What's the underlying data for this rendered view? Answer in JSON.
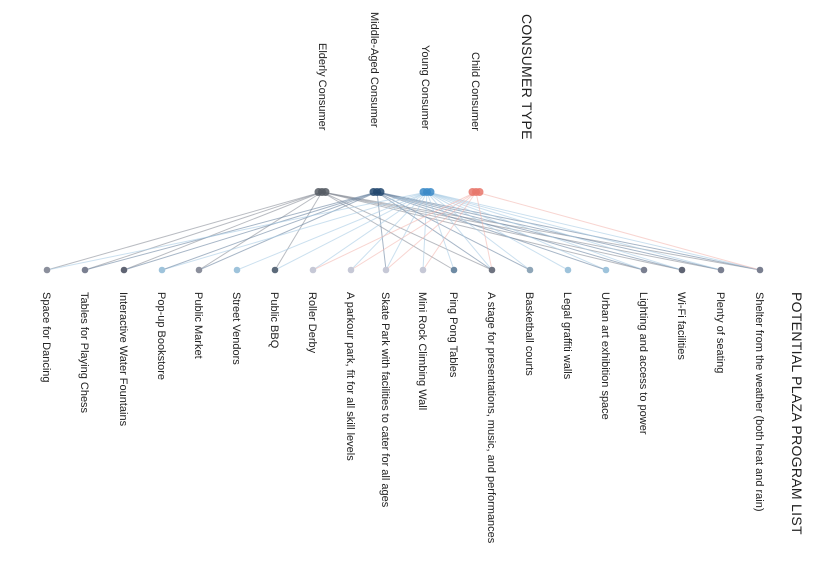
{
  "consumer_type_title": "CONSUMER TYPE",
  "program_list_title": "POTENTIAL PLAZA PROGRAM LIST",
  "consumers": [
    {
      "id": "child",
      "label": "Child Consumer",
      "color": "#e8766a"
    },
    {
      "id": "young",
      "label": "Young Consumer",
      "color": "#3a8ac8"
    },
    {
      "id": "middle",
      "label": "Middle-Aged Consumer",
      "color": "#22486e"
    },
    {
      "id": "elderly",
      "label": "Elderly Consumer",
      "color": "#555a63"
    }
  ],
  "programs": [
    {
      "label": "Shelter from the weather (both heat and rain)",
      "color": "#7a7f90",
      "consumers": [
        "elderly",
        "middle",
        "young",
        "child"
      ]
    },
    {
      "label": "Plenty of seating",
      "color": "#7a7f90",
      "consumers": [
        "elderly",
        "middle",
        "young"
      ]
    },
    {
      "label": "Wi-Fi facilities",
      "color": "#5f6473",
      "consumers": [
        "elderly",
        "middle",
        "young"
      ]
    },
    {
      "label": "Lighting and access to power",
      "color": "#7a7f90",
      "consumers": [
        "elderly",
        "middle",
        "young"
      ]
    },
    {
      "label": "Urban art exhibition space",
      "color": "#9ec3db",
      "consumers": [
        "young",
        "middle"
      ]
    },
    {
      "label": "Legal graffiti walls",
      "color": "#9ec3db",
      "consumers": [
        "young"
      ]
    },
    {
      "label": "Basketball courts",
      "color": "#8fa6b8",
      "consumers": [
        "young",
        "middle"
      ]
    },
    {
      "label": "A stage for presentations, music, and performances",
      "color": "#6e7380",
      "consumers": [
        "elderly",
        "middle",
        "young",
        "child"
      ]
    },
    {
      "label": "Ping Pong Tables",
      "color": "#6e8aa3",
      "consumers": [
        "elderly",
        "young"
      ]
    },
    {
      "label": "Mini Rock Climbing Wall",
      "color": "#c6c8d6",
      "consumers": [
        "child",
        "young"
      ]
    },
    {
      "label": "Skate Park with facilities to cater for all ages",
      "color": "#c6c8d6",
      "consumers": [
        "child",
        "young",
        "middle"
      ]
    },
    {
      "label": "A parkour park, fit for all skill levels",
      "color": "#c6c8d6",
      "consumers": [
        "child",
        "young"
      ]
    },
    {
      "label": "Roller Derby",
      "color": "#c6c8d6",
      "consumers": [
        "young",
        "child"
      ]
    },
    {
      "label": "Public BBQ",
      "color": "#5c6a7a",
      "consumers": [
        "elderly",
        "young"
      ]
    },
    {
      "label": "Street Vendors",
      "color": "#9ec3db",
      "consumers": [
        "young"
      ]
    },
    {
      "label": "Public Market",
      "color": "#8b8f9c",
      "consumers": [
        "elderly",
        "middle"
      ]
    },
    {
      "label": "Pop-up Bookstore",
      "color": "#9ec3db",
      "consumers": [
        "young",
        "middle"
      ]
    },
    {
      "label": "Interactive Water Fountains",
      "color": "#5f6473",
      "consumers": [
        "elderly",
        "middle"
      ]
    },
    {
      "label": "Tables for Playing Chess",
      "color": "#7a7f90",
      "consumers": [
        "elderly",
        "middle"
      ]
    },
    {
      "label": "Space for Dancing",
      "color": "#8b8f9c",
      "consumers": [
        "elderly",
        "young"
      ]
    }
  ]
}
